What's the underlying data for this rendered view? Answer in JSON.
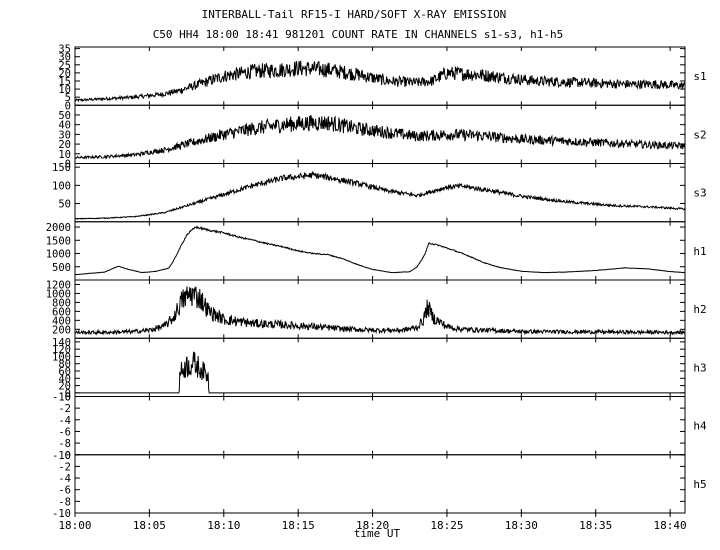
{
  "title": "INTERBALL-Tail RF15-I HARD/SOFT X-RAY EMISSION",
  "subtitle": "C50 HH4 18:00 18:41 981201  COUNT RATE IN CHANNELS s1-s3, h1-h5",
  "chart_data": {
    "type": "line",
    "title": "INTERBALL-Tail RF15-I HARD/SOFT X-RAY EMISSION",
    "subtitle": "C50 HH4 18:00 18:41 981201  COUNT RATE IN CHANNELS s1-s3, h1-h5",
    "xlabel": "time UT",
    "x_unit": "minutes after 18:00 UT",
    "xlim": [
      0,
      41
    ],
    "x_ticks": [
      {
        "value": 0,
        "label": "18:00"
      },
      {
        "value": 5,
        "label": "18:05"
      },
      {
        "value": 10,
        "label": "18:10"
      },
      {
        "value": 15,
        "label": "18:15"
      },
      {
        "value": 20,
        "label": "18:20"
      },
      {
        "value": 25,
        "label": "18:25"
      },
      {
        "value": 30,
        "label": "18:30"
      },
      {
        "value": 35,
        "label": "18:35"
      },
      {
        "value": 40,
        "label": "18:40"
      }
    ],
    "grid": false,
    "panels": [
      {
        "name": "s1",
        "ylim": [
          0,
          36
        ],
        "yticks": [
          "0",
          "5",
          "10",
          "15",
          "20",
          "25",
          "30",
          "35"
        ],
        "noise": 0.22,
        "spike": 0.0,
        "series": [
          [
            0,
            3
          ],
          [
            2,
            4
          ],
          [
            4,
            5
          ],
          [
            6,
            7
          ],
          [
            7,
            9
          ],
          [
            8,
            12
          ],
          [
            10,
            18
          ],
          [
            12,
            21
          ],
          [
            14,
            22
          ],
          [
            15,
            23
          ],
          [
            17,
            22
          ],
          [
            19,
            19
          ],
          [
            21,
            15
          ],
          [
            23,
            14
          ],
          [
            24,
            15
          ],
          [
            25,
            20
          ],
          [
            27,
            19
          ],
          [
            29,
            17
          ],
          [
            31,
            15
          ],
          [
            34,
            14
          ],
          [
            37,
            13
          ],
          [
            39,
            13
          ],
          [
            41,
            12
          ]
        ]
      },
      {
        "name": "s2",
        "ylim": [
          0,
          60
        ],
        "yticks": [
          "0",
          "10",
          "20",
          "30",
          "40",
          "50"
        ],
        "noise": 0.2,
        "spike": 0.0,
        "series": [
          [
            0,
            6
          ],
          [
            2,
            7
          ],
          [
            4,
            9
          ],
          [
            6,
            14
          ],
          [
            8,
            22
          ],
          [
            10,
            30
          ],
          [
            12,
            36
          ],
          [
            14,
            40
          ],
          [
            16,
            42
          ],
          [
            17,
            42
          ],
          [
            19,
            36
          ],
          [
            21,
            32
          ],
          [
            23,
            28
          ],
          [
            25,
            30
          ],
          [
            27,
            29
          ],
          [
            30,
            25
          ],
          [
            33,
            23
          ],
          [
            36,
            21
          ],
          [
            39,
            19
          ],
          [
            41,
            18
          ]
        ]
      },
      {
        "name": "s3",
        "ylim": [
          0,
          160
        ],
        "yticks": [
          "50",
          "100",
          "150"
        ],
        "noise": 0.07,
        "spike": 0.0,
        "series": [
          [
            0,
            8
          ],
          [
            2,
            10
          ],
          [
            4,
            14
          ],
          [
            6,
            25
          ],
          [
            8,
            50
          ],
          [
            10,
            75
          ],
          [
            12,
            100
          ],
          [
            14,
            120
          ],
          [
            16,
            128
          ],
          [
            17,
            122
          ],
          [
            19,
            105
          ],
          [
            21,
            85
          ],
          [
            23,
            72
          ],
          [
            25,
            95
          ],
          [
            26,
            98
          ],
          [
            28,
            85
          ],
          [
            30,
            70
          ],
          [
            33,
            55
          ],
          [
            36,
            45
          ],
          [
            39,
            40
          ],
          [
            41,
            35
          ]
        ]
      },
      {
        "name": "h1",
        "ylim": [
          0,
          2200
        ],
        "yticks": [
          "500",
          "1000",
          "1500",
          "2000"
        ],
        "noise": 0.02,
        "spike": 0.0,
        "series": [
          [
            0,
            200
          ],
          [
            2,
            300
          ],
          [
            2.9,
            520
          ],
          [
            3.6,
            400
          ],
          [
            4.5,
            280
          ],
          [
            5.5,
            330
          ],
          [
            6.3,
            450
          ],
          [
            6.6,
            700
          ],
          [
            7.5,
            1700
          ],
          [
            8.1,
            2000
          ],
          [
            9,
            1880
          ],
          [
            10,
            1780
          ],
          [
            11,
            1620
          ],
          [
            12,
            1500
          ],
          [
            13,
            1360
          ],
          [
            14,
            1250
          ],
          [
            15,
            1100
          ],
          [
            16,
            1000
          ],
          [
            17,
            960
          ],
          [
            18,
            800
          ],
          [
            19,
            580
          ],
          [
            20,
            400
          ],
          [
            21.3,
            280
          ],
          [
            22.5,
            310
          ],
          [
            23,
            500
          ],
          [
            23.5,
            950
          ],
          [
            23.8,
            1400
          ],
          [
            24.5,
            1300
          ],
          [
            25.5,
            1110
          ],
          [
            26.5,
            900
          ],
          [
            27.5,
            650
          ],
          [
            28.5,
            480
          ],
          [
            30,
            330
          ],
          [
            31.5,
            280
          ],
          [
            33,
            300
          ],
          [
            35,
            360
          ],
          [
            37,
            460
          ],
          [
            38.5,
            420
          ],
          [
            40,
            320
          ],
          [
            41,
            280
          ]
        ]
      },
      {
        "name": "h2",
        "ylim": [
          0,
          1300
        ],
        "yticks": [
          "200",
          "400",
          "600",
          "800",
          "1000",
          "1200"
        ],
        "noise": 0.3,
        "spike": 0.0,
        "series": [
          [
            0,
            130
          ],
          [
            2,
            130
          ],
          [
            4,
            150
          ],
          [
            5,
            180
          ],
          [
            6,
            270
          ],
          [
            6.6,
            450
          ],
          [
            7.2,
            850
          ],
          [
            7.8,
            1000
          ],
          [
            8.4,
            900
          ],
          [
            9,
            600
          ],
          [
            10,
            420
          ],
          [
            12,
            330
          ],
          [
            14,
            300
          ],
          [
            16,
            260
          ],
          [
            18,
            210
          ],
          [
            20,
            180
          ],
          [
            22,
            180
          ],
          [
            23,
            240
          ],
          [
            23.4,
            400
          ],
          [
            23.7,
            700
          ],
          [
            24.1,
            450
          ],
          [
            25,
            260
          ],
          [
            26,
            200
          ],
          [
            30,
            150
          ],
          [
            35,
            140
          ],
          [
            41,
            130
          ]
        ]
      },
      {
        "name": "h3",
        "ylim": [
          -10,
          150
        ],
        "yticks": [
          "-10",
          "0",
          "20",
          "40",
          "60",
          "80",
          "100",
          "120",
          "140"
        ],
        "noise": 0.0,
        "spike": 0.45,
        "series": [
          [
            0,
            0
          ],
          [
            7.0,
            0
          ],
          [
            7.05,
            55
          ],
          [
            7.5,
            75
          ],
          [
            8.0,
            80
          ],
          [
            8.5,
            65
          ],
          [
            8.95,
            45
          ],
          [
            9.0,
            0
          ],
          [
            41,
            0
          ]
        ]
      },
      {
        "name": "h4",
        "ylim": [
          -10,
          0
        ],
        "yticks": [
          "-10",
          "-8",
          "-6",
          "-4",
          "-2",
          "0"
        ],
        "noise": 0.0,
        "spike": 0.0,
        "series": []
      },
      {
        "name": "h5",
        "ylim": [
          -10,
          0
        ],
        "yticks": [
          "-10",
          "-8",
          "-6",
          "-4",
          "-2",
          "0"
        ],
        "noise": 0.0,
        "spike": 0.0,
        "series": []
      }
    ]
  }
}
